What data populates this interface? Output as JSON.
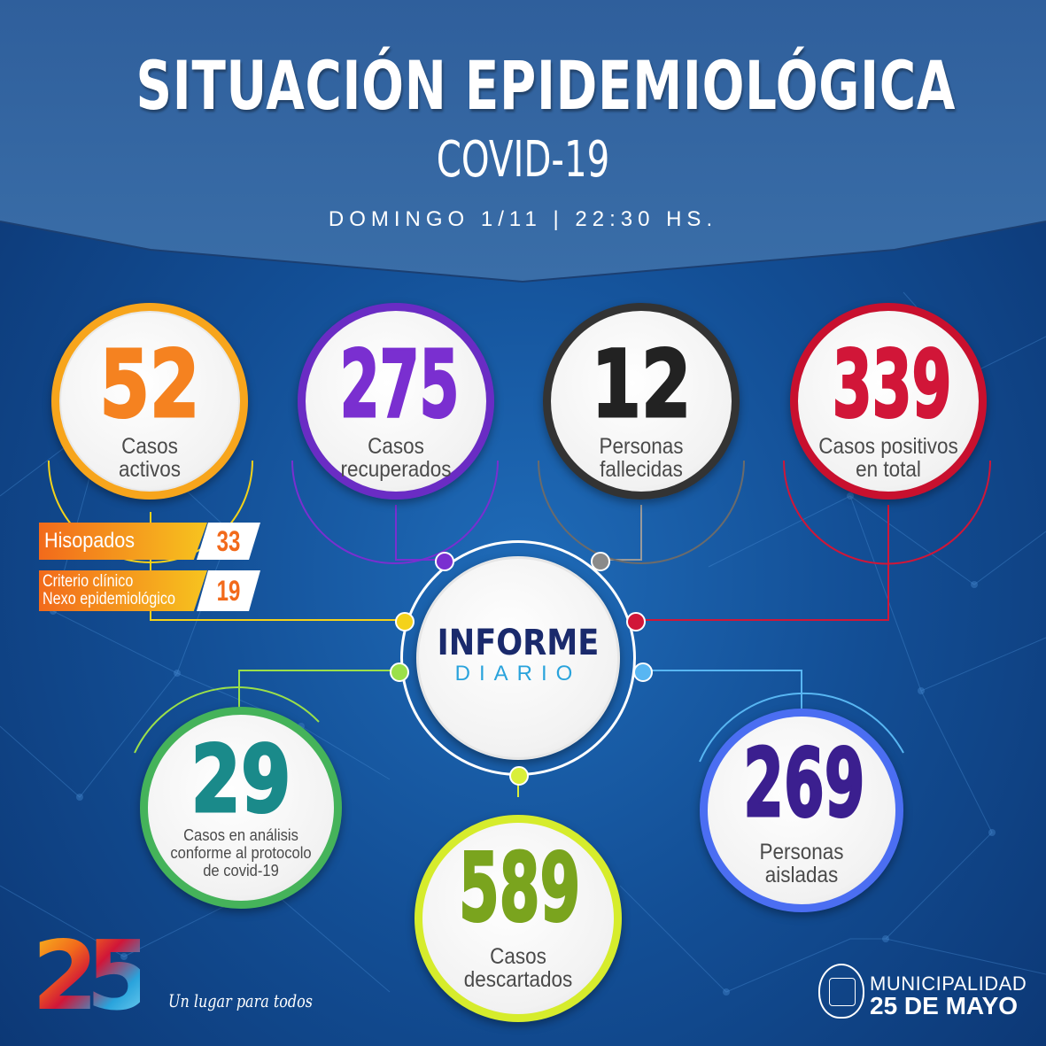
{
  "header": {
    "title": "SITUACIÓN EPIDEMIOLÓGICA",
    "subtitle": "COVID-19",
    "date": "DOMINGO 1/11 | 22:30 HS."
  },
  "stats": {
    "activos": {
      "value": "52",
      "label_1": "Casos",
      "label_2": "activos",
      "color": "#f58220"
    },
    "recuperados": {
      "value": "275",
      "label_1": "Casos",
      "label_2": "recuperados",
      "color": "#7a2fd0"
    },
    "fallecidas": {
      "value": "12",
      "label_1": "Personas",
      "label_2": "fallecidas",
      "color": "#222222"
    },
    "positivos": {
      "value": "339",
      "label_1": "Casos positivos",
      "label_2": "en total",
      "color": "#d11638"
    },
    "analisis": {
      "value": "29",
      "label_1": "Casos en análisis",
      "label_2": "conforme al protocolo",
      "label_3": "de covid-19",
      "color": "#1a8a8a"
    },
    "descartados": {
      "value": "589",
      "label_1": "Casos",
      "label_2": "descartados",
      "color": "#7aa41e"
    },
    "aisladas": {
      "value": "269",
      "label_1": "Personas",
      "label_2": "aisladas",
      "color": "#3b1f8f"
    }
  },
  "breakdown": {
    "hisopados_label": "Hisopados",
    "hisopados_value": "33",
    "criterio_label_1": "Criterio clínico",
    "criterio_label_2": "Nexo epidemiológico",
    "criterio_value": "19"
  },
  "center": {
    "title": "INFORME",
    "subtitle": "DIARIO"
  },
  "footer": {
    "logo_number": "25",
    "slogan": "Un lugar para todos",
    "municipality_line1": "MUNICIPALIDAD",
    "municipality_line2": "25 DE MAYO"
  }
}
